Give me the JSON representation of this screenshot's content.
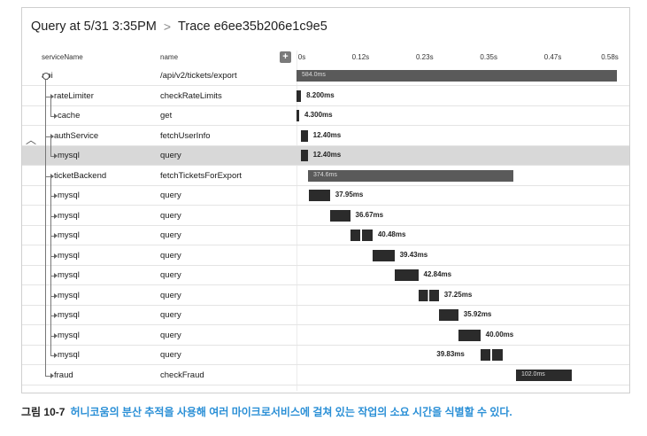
{
  "header": {
    "query_label": "Query at 5/31 3:35PM",
    "separator": ">",
    "trace_label": "Trace e6ee35b206e1c9e5"
  },
  "columns": {
    "service": "serviceName",
    "name": "name",
    "expand": "+",
    "ticks": [
      "0s",
      "0.12s",
      "0.23s",
      "0.35s",
      "0.47s",
      "0.58s"
    ]
  },
  "spans": [
    {
      "service": "api",
      "name": "/api/v2/tickets/export",
      "duration": "584.0ms",
      "start_ms": 0,
      "dur_ms": 584.0,
      "level": 0,
      "selected": false
    },
    {
      "service": "rateLimiter",
      "name": "checkRateLimits",
      "duration": "8.200ms",
      "start_ms": 0,
      "dur_ms": 8.2,
      "level": 1,
      "selected": false
    },
    {
      "service": "cache",
      "name": "get",
      "duration": "4.300ms",
      "start_ms": 0,
      "dur_ms": 4.3,
      "level": 2,
      "selected": false
    },
    {
      "service": "authService",
      "name": "fetchUserInfo",
      "duration": "12.40ms",
      "start_ms": 8,
      "dur_ms": 12.4,
      "level": 1,
      "selected": false
    },
    {
      "service": "mysql",
      "name": "query",
      "duration": "12.40ms",
      "start_ms": 8,
      "dur_ms": 12.4,
      "level": 2,
      "selected": true
    },
    {
      "service": "ticketBackend",
      "name": "fetchTicketsForExport",
      "duration": "374.6ms",
      "start_ms": 21,
      "dur_ms": 374.6,
      "level": 1,
      "selected": false
    },
    {
      "service": "mysql",
      "name": "query",
      "duration": "37.95ms",
      "start_ms": 23,
      "dur_ms": 37.95,
      "level": 2,
      "selected": false
    },
    {
      "service": "mysql",
      "name": "query",
      "duration": "36.67ms",
      "start_ms": 61,
      "dur_ms": 36.67,
      "level": 2,
      "selected": false
    },
    {
      "service": "mysql",
      "name": "query",
      "duration": "40.48ms",
      "start_ms": 98,
      "dur_ms": 40.48,
      "level": 2,
      "selected": false
    },
    {
      "service": "mysql",
      "name": "query",
      "duration": "39.43ms",
      "start_ms": 139,
      "dur_ms": 39.43,
      "level": 2,
      "selected": false
    },
    {
      "service": "mysql",
      "name": "query",
      "duration": "42.84ms",
      "start_ms": 179,
      "dur_ms": 42.84,
      "level": 2,
      "selected": false
    },
    {
      "service": "mysql",
      "name": "query",
      "duration": "37.25ms",
      "start_ms": 222,
      "dur_ms": 37.25,
      "level": 2,
      "selected": false
    },
    {
      "service": "mysql",
      "name": "query",
      "duration": "35.92ms",
      "start_ms": 259,
      "dur_ms": 35.92,
      "level": 2,
      "selected": false
    },
    {
      "service": "mysql",
      "name": "query",
      "duration": "40.00ms",
      "start_ms": 295,
      "dur_ms": 40.0,
      "level": 2,
      "selected": false
    },
    {
      "service": "mysql",
      "name": "query",
      "duration": "39.83ms",
      "start_ms": 336,
      "dur_ms": 39.83,
      "level": 2,
      "selected": false
    },
    {
      "service": "fraud",
      "name": "checkFraud",
      "duration": "102.0ms",
      "start_ms": 400,
      "dur_ms": 102.0,
      "level": 1,
      "selected": false
    }
  ],
  "caption": {
    "number": "그림 10-7",
    "text": "허니코움의 분산 추적을 사용해 여러 마이크로서비스에 걸쳐 있는 작업의 소요 시간을 식별할 수 있다."
  }
}
